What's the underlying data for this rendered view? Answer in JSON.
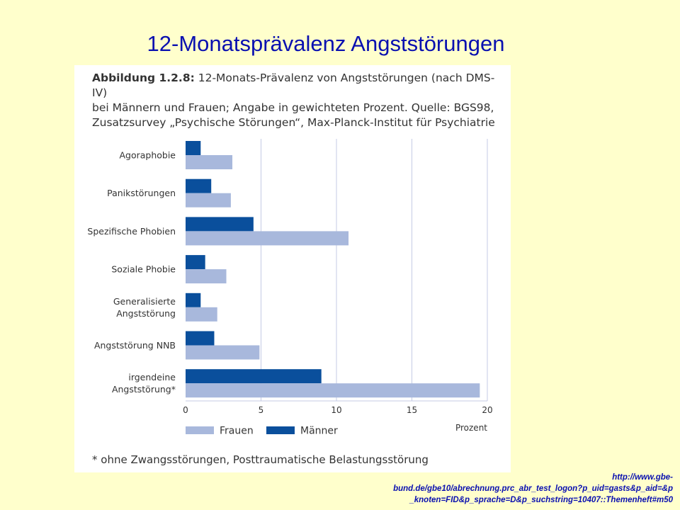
{
  "slide": {
    "title": "12-Monatsprävalenz Angststörungen",
    "url_lines": [
      "http://www.gbe-",
      "bund.de/gbe10/abrechnung.prc_abr_test_logon?p_uid=gasts&p_aid=&p",
      "_knoten=FID&p_sprache=D&p_suchstring=10407::Themenheft#m50"
    ]
  },
  "figure": {
    "caption_lead": "Abbildung 1.2.8:",
    "caption_line1_rest": " 12-Monats-Prävalenz von Angststörungen (nach DMS-IV)",
    "caption_line2": "bei Männern und Frauen; Angabe in gewichteten Prozent. Quelle: BGS98,",
    "caption_line3": "Zusatzsurvey „Psychische Störungen“, Max-Planck-Institut für Psychiatrie",
    "footnote": "* ohne Zwangsstörungen, Posttraumatische Belastungsstörung"
  },
  "chart_data": {
    "type": "bar",
    "orientation": "horizontal",
    "categories": [
      [
        "Agoraphobie"
      ],
      [
        "Panikstörungen"
      ],
      [
        "Spezifische Phobien"
      ],
      [
        "Soziale Phobie"
      ],
      [
        "Generalisierte",
        "Angststörung"
      ],
      [
        "Angststörung NNB"
      ],
      [
        "irgendeine",
        "Angststörung*"
      ]
    ],
    "series": [
      {
        "name": "Männer",
        "color": "#0a4f9c",
        "values": [
          1.0,
          1.7,
          4.5,
          1.3,
          1.0,
          1.9,
          9.0
        ]
      },
      {
        "name": "Frauen",
        "color": "#a8b8dc",
        "values": [
          3.1,
          3.0,
          10.8,
          2.7,
          2.1,
          4.9,
          19.5
        ]
      }
    ],
    "xlim": [
      0,
      20
    ],
    "xticks": [
      0,
      5,
      10,
      15,
      20
    ],
    "xlabel": "Prozent",
    "legend_order": [
      "Frauen",
      "Männer"
    ],
    "legend_position": "bottom-left",
    "grid": "vertical",
    "gridline_color": "#c4cbe4"
  }
}
